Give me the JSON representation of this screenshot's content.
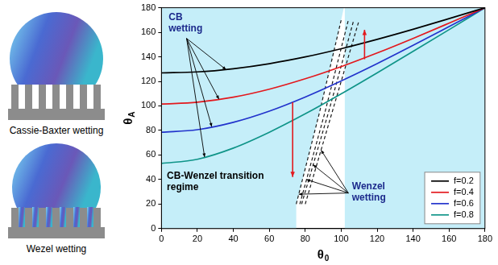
{
  "chart_data": {
    "type": "line",
    "x": [
      0,
      20,
      40,
      60,
      80,
      100,
      120,
      140,
      160,
      180
    ],
    "series": [
      {
        "name": "f=0.2",
        "color": "#000000",
        "line_style": "solid",
        "values": [
          126.9,
          127.7,
          130.3,
          134.4,
          139.9,
          146.6,
          154.2,
          162.4,
          171.1,
          180
        ]
      },
      {
        "name": "f=0.4",
        "color": "#e3191e",
        "line_style": "solid",
        "values": [
          101.5,
          103.0,
          107.1,
          113.6,
          122.1,
          132.0,
          143.1,
          155.0,
          167.4,
          180
        ]
      },
      {
        "name": "f=0.6",
        "color": "#2233cc",
        "line_style": "solid",
        "values": [
          78.5,
          80.6,
          86.6,
          95.7,
          107.2,
          120.3,
          134.4,
          149.3,
          164.6,
          180
        ]
      },
      {
        "name": "f=0.8",
        "color": "#0f9488",
        "line_style": "solid",
        "values": [
          53.1,
          56.5,
          65.6,
          78.5,
          93.5,
          109.8,
          126.9,
          144.4,
          162.1,
          180
        ]
      },
      {
        "color": "#1a1a1a",
        "line_style": "dashed",
        "x": [
          75,
          88,
          100
        ],
        "values": [
          20,
          95,
          170
        ]
      },
      {
        "color": "#1a1a1a",
        "line_style": "dashed",
        "x": [
          77,
          91,
          104
        ],
        "values": [
          20,
          95,
          170
        ]
      },
      {
        "color": "#1a1a1a",
        "line_style": "dashed",
        "x": [
          78,
          93,
          107
        ],
        "values": [
          20,
          95,
          170
        ]
      },
      {
        "color": "#1a1a1a",
        "line_style": "dashed",
        "x": [
          80,
          95,
          110
        ],
        "values": [
          20,
          95,
          170
        ]
      }
    ],
    "xlim": [
      0,
      180
    ],
    "ylim": [
      0,
      180
    ],
    "xticks": [
      0,
      20,
      40,
      60,
      80,
      100,
      120,
      140,
      160,
      180
    ],
    "yticks": [
      0,
      20,
      40,
      60,
      80,
      100,
      120,
      140,
      160,
      180
    ],
    "x_label": "θ0",
    "y_label": "θA",
    "grid": false,
    "legend": "bottom-right",
    "annotations": [
      {
        "text": "CB wetting",
        "color": "#1c2a8c"
      },
      {
        "text": "CB-Wenzel transition regime",
        "color": "#000000"
      },
      {
        "text": "Wenzel wetting",
        "color": "#1c2a8c"
      }
    ]
  },
  "schematics": [
    {
      "caption": "Cassie-Baxter wetting"
    },
    {
      "caption": "Wezel wetting"
    }
  ]
}
